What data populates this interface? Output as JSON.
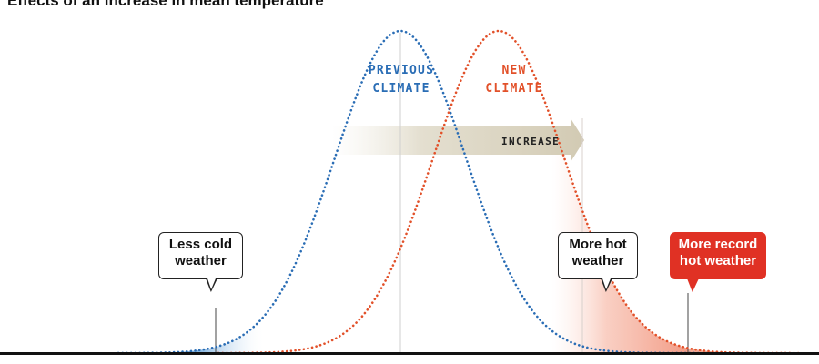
{
  "title": "Effects of an increase in mean temperature",
  "labels": {
    "previous_climate": [
      "PREVIOUS",
      "CLIMATE"
    ],
    "new_climate": [
      "NEW",
      "CLIMATE"
    ],
    "increase": "INCREASE"
  },
  "callouts": {
    "less_cold": "Less cold\nweather",
    "more_hot": "More hot\nweather",
    "more_record_hot": "More record\nhot weather"
  },
  "colors": {
    "previous_climate": "#2a6db5",
    "new_climate": "#e2512a",
    "cold_shade": "#3b85c9",
    "hot_shade": "#f4a48e",
    "record_callout": "#e03124",
    "axis": "#111111"
  }
}
